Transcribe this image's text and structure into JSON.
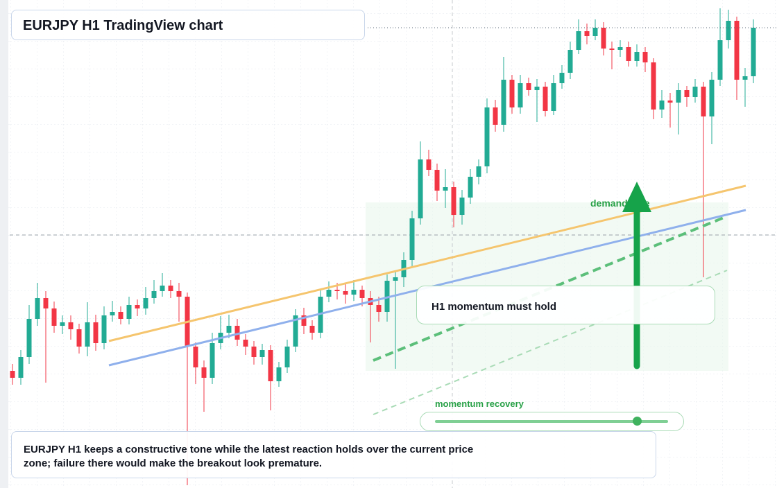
{
  "chart_data": {
    "type": "candlestick",
    "title": "EURJPY H1 TradingView chart",
    "ylim": [
      0,
      704
    ],
    "up_color": "#22ab94",
    "down_color": "#f23645",
    "ohlc": [
      [
        169,
        179,
        149,
        159
      ],
      [
        159,
        199,
        149,
        189
      ],
      [
        189,
        264,
        179,
        244
      ],
      [
        244,
        296,
        234,
        274
      ],
      [
        274,
        284,
        152,
        259
      ],
      [
        259,
        269,
        224,
        234
      ],
      [
        234,
        249,
        222,
        239
      ],
      [
        239,
        249,
        214,
        229
      ],
      [
        229,
        237,
        194,
        204
      ],
      [
        204,
        268,
        190,
        239
      ],
      [
        239,
        250,
        198,
        209
      ],
      [
        209,
        262,
        200,
        249
      ],
      [
        249,
        270,
        240,
        254
      ],
      [
        254,
        262,
        236,
        244
      ],
      [
        244,
        276,
        236,
        264
      ],
      [
        264,
        272,
        248,
        259
      ],
      [
        259,
        290,
        250,
        274
      ],
      [
        274,
        300,
        266,
        284
      ],
      [
        284,
        310,
        276,
        292
      ],
      [
        292,
        300,
        274,
        284
      ],
      [
        284,
        296,
        240,
        276
      ],
      [
        276,
        282,
        4,
        204
      ],
      [
        204,
        210,
        150,
        174
      ],
      [
        174,
        184,
        110,
        159
      ],
      [
        159,
        224,
        150,
        209
      ],
      [
        209,
        248,
        200,
        224
      ],
      [
        224,
        250,
        216,
        234
      ],
      [
        234,
        244,
        205,
        214
      ],
      [
        214,
        222,
        192,
        204
      ],
      [
        204,
        212,
        178,
        189
      ],
      [
        189,
        208,
        178,
        199
      ],
      [
        199,
        206,
        112,
        154
      ],
      [
        154,
        182,
        146,
        174
      ],
      [
        174,
        214,
        166,
        204
      ],
      [
        204,
        258,
        196,
        249
      ],
      [
        249,
        260,
        222,
        234
      ],
      [
        234,
        242,
        214,
        224
      ],
      [
        224,
        286,
        216,
        276
      ],
      [
        276,
        298,
        268,
        286
      ],
      [
        286,
        296,
        272,
        284
      ],
      [
        284,
        294,
        266,
        279
      ],
      [
        279,
        300,
        270,
        286
      ],
      [
        286,
        292,
        262,
        274
      ],
      [
        274,
        284,
        210,
        264
      ],
      [
        264,
        276,
        240,
        254
      ],
      [
        254,
        308,
        240,
        299
      ],
      [
        299,
        312,
        172,
        304
      ],
      [
        304,
        340,
        290,
        329
      ],
      [
        329,
        400,
        318,
        389
      ],
      [
        389,
        500,
        380,
        474
      ],
      [
        474,
        488,
        450,
        459
      ],
      [
        459,
        468,
        414,
        429
      ],
      [
        429,
        460,
        404,
        434
      ],
      [
        434,
        442,
        376,
        394
      ],
      [
        394,
        430,
        380,
        419
      ],
      [
        419,
        460,
        410,
        449
      ],
      [
        449,
        474,
        438,
        464
      ],
      [
        464,
        562,
        454,
        549
      ],
      [
        549,
        560,
        514,
        524
      ],
      [
        524,
        622,
        514,
        589
      ],
      [
        589,
        596,
        540,
        549
      ],
      [
        549,
        596,
        540,
        584
      ],
      [
        584,
        592,
        566,
        574
      ],
      [
        574,
        590,
        528,
        579
      ],
      [
        579,
        586,
        536,
        544
      ],
      [
        544,
        596,
        538,
        584
      ],
      [
        584,
        610,
        576,
        599
      ],
      [
        599,
        644,
        590,
        632
      ],
      [
        632,
        676,
        626,
        659
      ],
      [
        659,
        670,
        640,
        652
      ],
      [
        652,
        676,
        646,
        664
      ],
      [
        664,
        672,
        624,
        634
      ],
      [
        634,
        644,
        604,
        632
      ],
      [
        632,
        646,
        622,
        636
      ],
      [
        636,
        644,
        608,
        616
      ],
      [
        616,
        640,
        608,
        629
      ],
      [
        629,
        636,
        600,
        614
      ],
      [
        614,
        620,
        532,
        546
      ],
      [
        546,
        574,
        534,
        559
      ],
      [
        559,
        570,
        520,
        556
      ],
      [
        556,
        584,
        510,
        574
      ],
      [
        574,
        580,
        550,
        564
      ],
      [
        564,
        590,
        556,
        579
      ],
      [
        579,
        586,
        304,
        536
      ],
      [
        536,
        600,
        496,
        589
      ],
      [
        589,
        692,
        580,
        646
      ],
      [
        646,
        690,
        634,
        674
      ],
      [
        674,
        680,
        560,
        589
      ],
      [
        589,
        606,
        550,
        594
      ],
      [
        594,
        676,
        584,
        664
      ]
    ],
    "annotations": {
      "zone_label": "demand side",
      "callout": "H1 momentum must hold",
      "slider_label": "momentum recovery",
      "caption": "EURJPY H1 keeps a constructive tone while the latest reaction holds over the current price zone; failure there would make the breakout look premature."
    }
  }
}
